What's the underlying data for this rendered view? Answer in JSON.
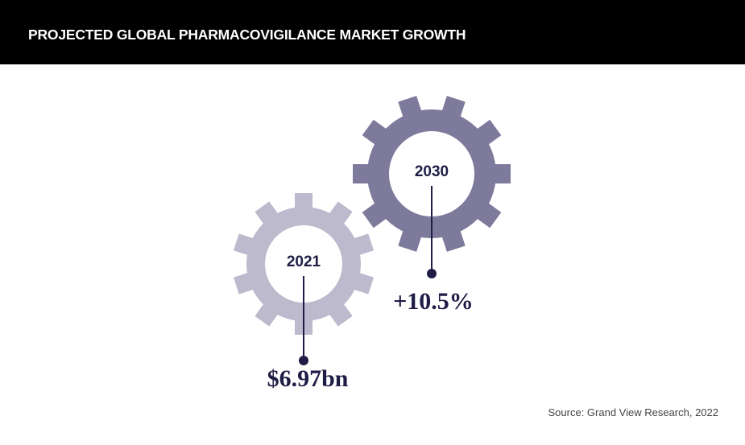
{
  "header": {
    "title": "PROJECTED GLOBAL PHARMACOVIGILANCE MARKET GROWTH"
  },
  "gears": [
    {
      "year": "2021",
      "value": "$6.97bn",
      "color": "#bdbace"
    },
    {
      "year": "2030",
      "value": "+10.5%",
      "color": "#7e7a9c"
    }
  ],
  "colors": {
    "text": "#1f1d45",
    "header_bg": "#000000"
  },
  "source": "Source: Grand View Research, 2022"
}
